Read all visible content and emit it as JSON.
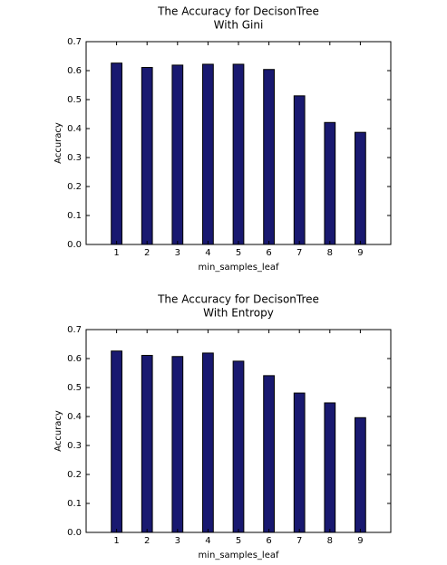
{
  "chart_data": [
    {
      "type": "bar",
      "title": "The Accuracy for DecisonTree\nWith Gini",
      "xlabel": "min_samples_leaf",
      "ylabel": "Accuracy",
      "categories": [
        "1",
        "2",
        "3",
        "4",
        "5",
        "6",
        "7",
        "8",
        "9"
      ],
      "values": [
        0.626,
        0.611,
        0.619,
        0.622,
        0.622,
        0.604,
        0.513,
        0.421,
        0.387
      ],
      "ylim": [
        0,
        0.7
      ],
      "yticks": [
        "0.0",
        "0.1",
        "0.2",
        "0.3",
        "0.4",
        "0.5",
        "0.6",
        "0.7"
      ],
      "grid": false,
      "bar_color": "#191970"
    },
    {
      "type": "bar",
      "title": "The Accuracy for DecisonTree\nWith Entropy",
      "xlabel": "min_samples_leaf",
      "ylabel": "Accuracy",
      "categories": [
        "1",
        "2",
        "3",
        "4",
        "5",
        "6",
        "7",
        "8",
        "9"
      ],
      "values": [
        0.626,
        0.611,
        0.607,
        0.619,
        0.591,
        0.541,
        0.481,
        0.447,
        0.396
      ],
      "ylim": [
        0,
        0.7
      ],
      "yticks": [
        "0.0",
        "0.1",
        "0.2",
        "0.3",
        "0.4",
        "0.5",
        "0.6",
        "0.7"
      ],
      "grid": false,
      "bar_color": "#191970"
    }
  ]
}
